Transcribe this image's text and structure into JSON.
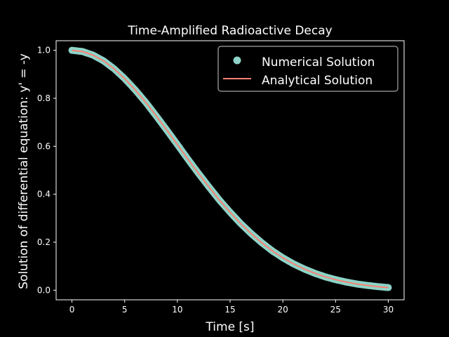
{
  "colors": {
    "background": "#000000",
    "foreground": "#ffffff",
    "numerical": "#8dd3c7",
    "analytical": "#fa8174"
  },
  "chart_data": {
    "type": "line",
    "title": "Time-Amplified Radioactive Decay",
    "xlabel": "Time [s]",
    "ylabel": "Solution of differential equation: y' = -y",
    "xlim": [
      -1.5,
      31.5
    ],
    "ylim": [
      -0.04,
      1.04
    ],
    "xticks": [
      0,
      5,
      10,
      15,
      20,
      25,
      30
    ],
    "xtick_labels": [
      "0",
      "5",
      "10",
      "15",
      "20",
      "25",
      "30"
    ],
    "yticks": [
      0.0,
      0.2,
      0.4,
      0.6,
      0.8,
      1.0
    ],
    "ytick_labels": [
      "0.0",
      "0.2",
      "0.4",
      "0.6",
      "0.8",
      "1.0"
    ],
    "grid": false,
    "legend_position": "top-right",
    "series": [
      {
        "name": "Numerical Solution",
        "style": "scatter",
        "x": [
          0,
          1,
          2,
          3,
          4,
          5,
          6,
          7,
          8,
          9,
          10,
          11,
          12,
          13,
          14,
          15,
          16,
          17,
          18,
          19,
          20,
          21,
          22,
          23,
          24,
          25,
          26,
          27,
          28,
          29,
          30
        ],
        "y": [
          1.0,
          0.995,
          0.98,
          0.956,
          0.923,
          0.882,
          0.835,
          0.783,
          0.726,
          0.667,
          0.607,
          0.546,
          0.487,
          0.43,
          0.375,
          0.325,
          0.278,
          0.236,
          0.198,
          0.164,
          0.135,
          0.11,
          0.089,
          0.071,
          0.056,
          0.044,
          0.034,
          0.026,
          0.02,
          0.015,
          0.011
        ]
      },
      {
        "name": "Analytical Solution",
        "style": "line",
        "x": [
          0,
          1,
          2,
          3,
          4,
          5,
          6,
          7,
          8,
          9,
          10,
          11,
          12,
          13,
          14,
          15,
          16,
          17,
          18,
          19,
          20,
          21,
          22,
          23,
          24,
          25,
          26,
          27,
          28,
          29,
          30
        ],
        "y": [
          1.0,
          0.995,
          0.98,
          0.956,
          0.923,
          0.882,
          0.835,
          0.783,
          0.726,
          0.667,
          0.607,
          0.546,
          0.487,
          0.43,
          0.375,
          0.325,
          0.278,
          0.236,
          0.198,
          0.164,
          0.135,
          0.11,
          0.089,
          0.071,
          0.056,
          0.044,
          0.034,
          0.026,
          0.02,
          0.015,
          0.011
        ]
      }
    ]
  }
}
